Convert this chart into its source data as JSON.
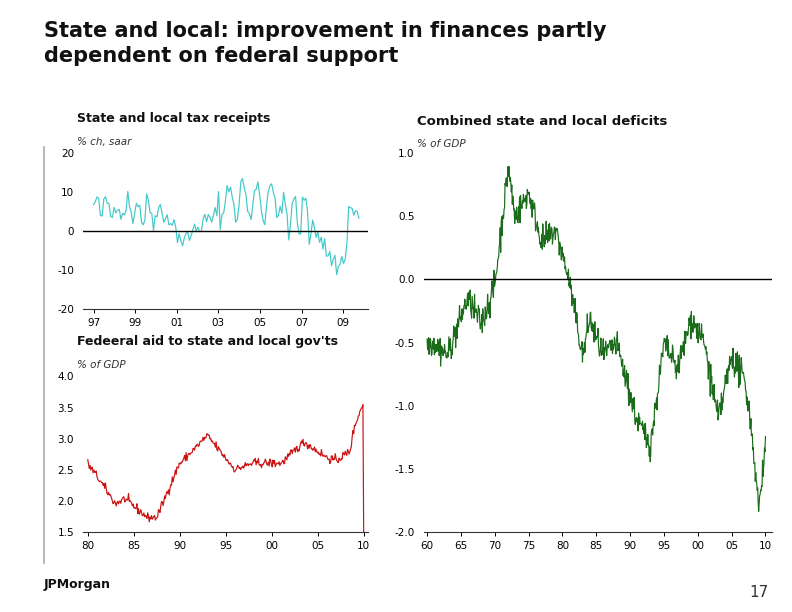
{
  "title_line1": "State and local: improvement in finances partly",
  "title_line2": "dependent on federal support",
  "bg_color": "#ffffff",
  "panel1": {
    "title": "State and local tax receipts",
    "subtitle": "% ch, saar",
    "color": "#40C8C8",
    "ylim": [
      -20,
      20
    ],
    "yticks": [
      -20,
      -10,
      0,
      10,
      20
    ],
    "xlim": [
      1996.5,
      2010.2
    ],
    "xticks": [
      1997,
      1999,
      2001,
      2003,
      2005,
      2007,
      2009
    ],
    "xticklabels": [
      "97",
      "99",
      "01",
      "03",
      "05",
      "07",
      "09"
    ]
  },
  "panel2": {
    "title": "Fedeeral aid to state and local gov'ts",
    "subtitle": "% of GDP",
    "color": "#CC1111",
    "ylim": [
      1.5,
      4.0
    ],
    "yticks": [
      1.5,
      2.0,
      2.5,
      3.0,
      3.5,
      4.0
    ],
    "xlim": [
      1979.5,
      2010.5
    ],
    "xticks": [
      1980,
      1985,
      1990,
      1995,
      2000,
      2005,
      2010
    ],
    "xticklabels": [
      "80",
      "85",
      "90",
      "95",
      "00",
      "05",
      "10"
    ]
  },
  "panel3": {
    "title": "Combined state and local deficits",
    "subtitle": "% of GDP",
    "color": "#1a6b1a",
    "ylim": [
      -2.0,
      1.0
    ],
    "yticks": [
      -2.0,
      -1.5,
      -1.0,
      -0.5,
      0.0,
      0.5,
      1.0
    ],
    "xlim": [
      1959.5,
      2011
    ],
    "xticks": [
      1960,
      1965,
      1970,
      1975,
      1980,
      1985,
      1990,
      1995,
      2000,
      2005,
      2010
    ],
    "xticklabels": [
      "60",
      "65",
      "70",
      "75",
      "80",
      "85",
      "90",
      "95",
      "00",
      "05",
      "10"
    ]
  },
  "footer": "JPMorgan",
  "page_number": "17"
}
